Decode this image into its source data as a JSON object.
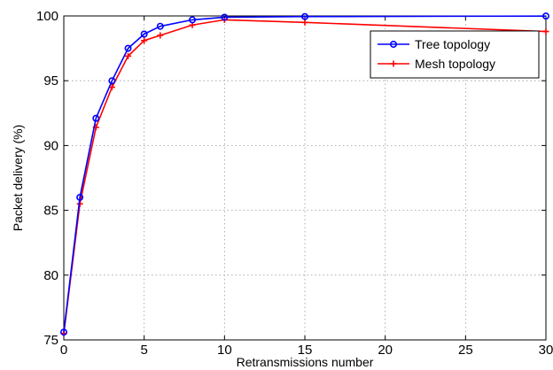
{
  "chart_data": {
    "type": "line",
    "title": "",
    "xlabel": "Retransmissions number",
    "ylabel": "Packet delivery (%)",
    "xlim": [
      0,
      30
    ],
    "ylim": [
      75,
      100
    ],
    "xticks": [
      0,
      5,
      10,
      15,
      20,
      25,
      30
    ],
    "yticks": [
      75,
      80,
      85,
      90,
      95,
      100
    ],
    "grid": true,
    "legend_position": "top-right",
    "series": [
      {
        "name": "Tree topology",
        "color": "#0000ff",
        "marker": "circle",
        "x": [
          0,
          1,
          2,
          3,
          4,
          5,
          6,
          8,
          10,
          15,
          30
        ],
        "y": [
          75.6,
          86.0,
          92.1,
          95.0,
          97.5,
          98.6,
          99.2,
          99.7,
          99.9,
          99.95,
          99.99
        ]
      },
      {
        "name": "Mesh topology",
        "color": "#ff0000",
        "marker": "plus",
        "x": [
          0,
          1,
          2,
          3,
          4,
          5,
          6,
          8,
          10,
          15,
          30
        ],
        "y": [
          75.5,
          85.5,
          91.4,
          94.5,
          96.9,
          98.1,
          98.5,
          99.3,
          99.7,
          99.5,
          98.8
        ]
      }
    ]
  }
}
